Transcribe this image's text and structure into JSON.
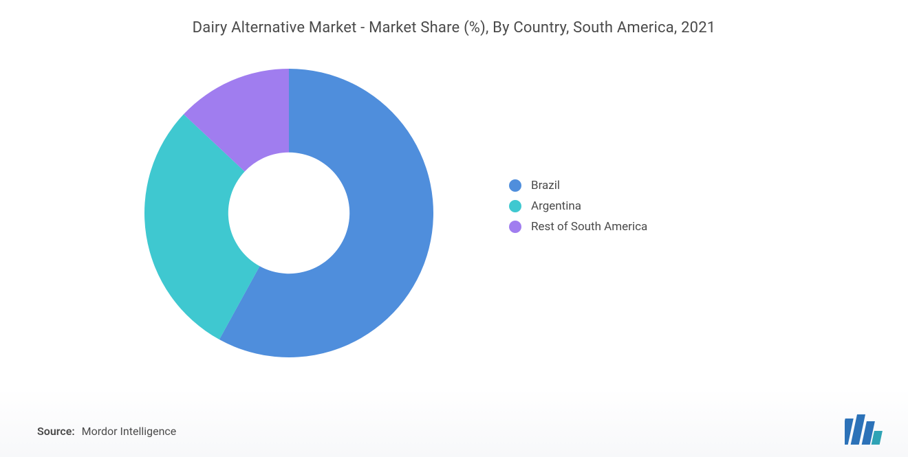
{
  "chart": {
    "type": "donut",
    "title": "Dairy Alternative Market - Market Share (%), By Country, South America, 2021",
    "title_fontsize": 22,
    "title_color": "#4a4a4a",
    "background_color": "#ffffff",
    "footer_gradient_to": "#f7f8fa",
    "inner_radius_ratio": 0.42,
    "outer_radius": 210,
    "start_angle_deg": -90,
    "slices": [
      {
        "label": "Brazil",
        "value": 58,
        "color": "#4f8edc"
      },
      {
        "label": "Argentina",
        "value": 29,
        "color": "#3fc8d0"
      },
      {
        "label": "Rest of South America",
        "value": 13,
        "color": "#a07def"
      }
    ],
    "legend": {
      "position": "right",
      "fontsize": 17,
      "text_color": "#4a4a4a",
      "swatch_shape": "circle",
      "swatch_size": 18
    },
    "source": {
      "label": "Source:",
      "value": "Mordor Intelligence",
      "fontsize": 16,
      "label_weight": 600,
      "color": "#4a4a4a"
    },
    "logo": {
      "bar_color": "#2c72b8",
      "accent_color": "#2fa3b5"
    }
  }
}
